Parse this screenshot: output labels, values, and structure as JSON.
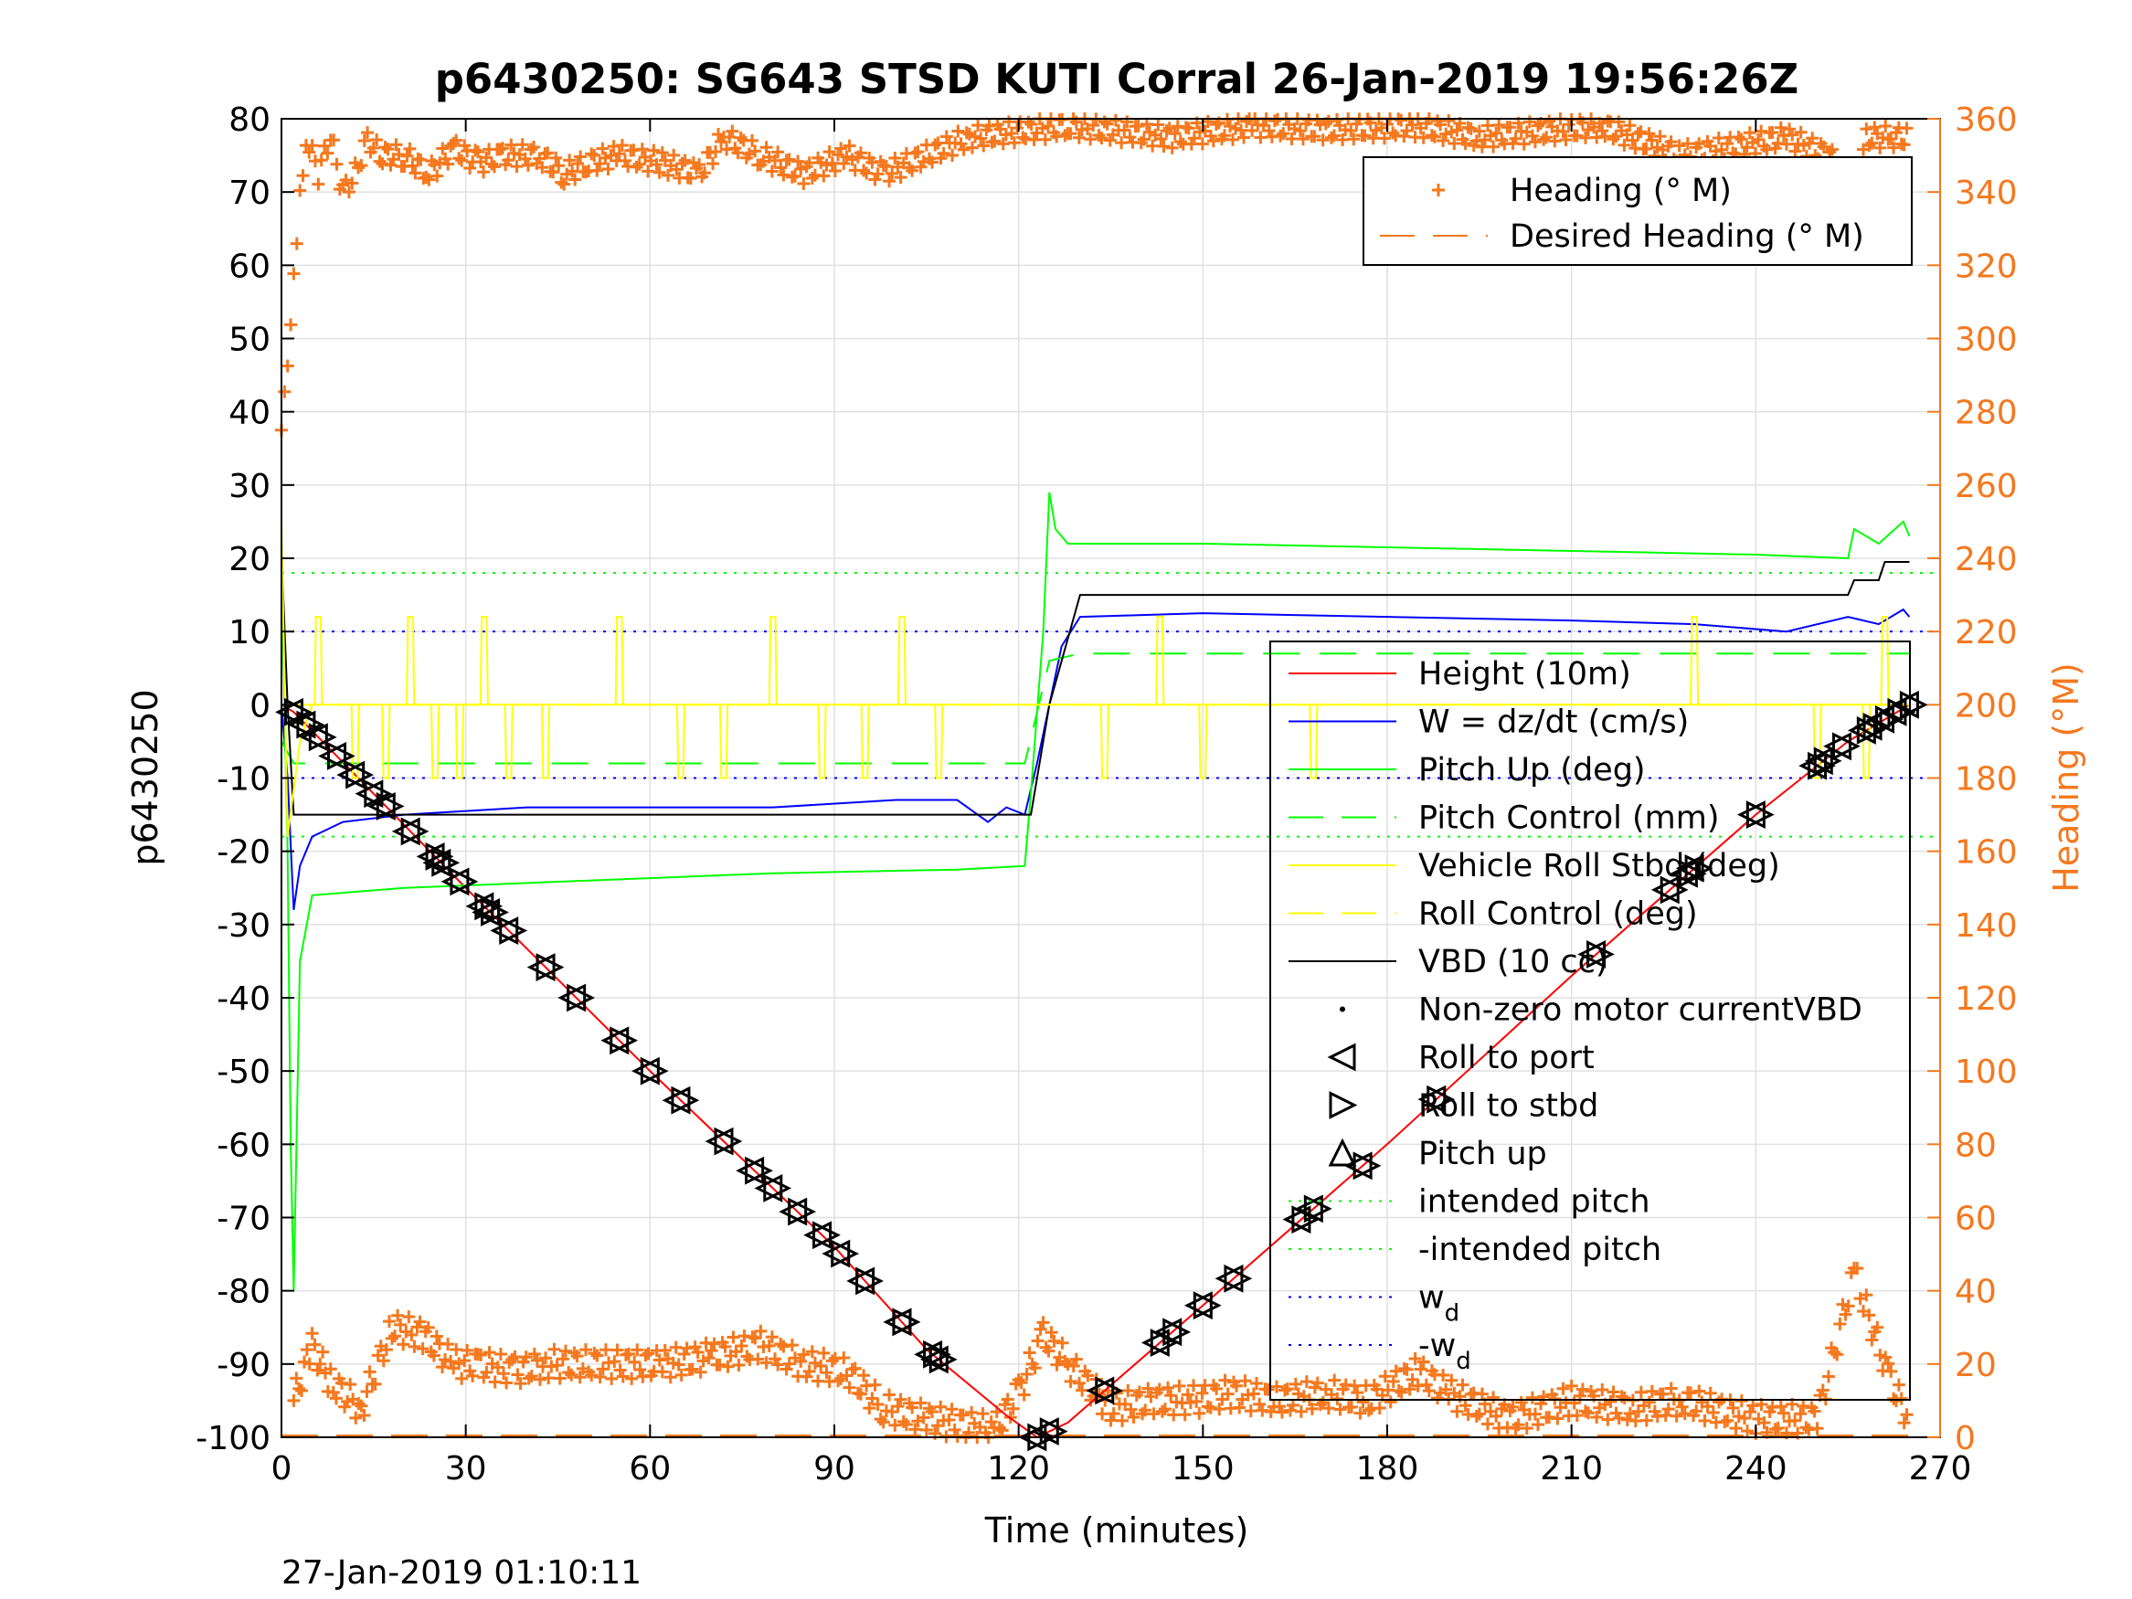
{
  "chart_data": {
    "type": "line",
    "title": "p6430250: SG643 STSD KUTI Corral 26-Jan-2019 19:56:26Z",
    "xlabel": "Time (minutes)",
    "ylabel": "p6430250",
    "ylabel_right": "Heading (°M)",
    "xlim": [
      0,
      270
    ],
    "ylim": [
      -100,
      80
    ],
    "ylim_right": [
      0,
      360
    ],
    "x_ticks": [
      "0",
      "30",
      "60",
      "90",
      "120",
      "150",
      "180",
      "210",
      "240",
      "270"
    ],
    "y_ticks": [
      "-100",
      "-90",
      "-80",
      "-70",
      "-60",
      "-50",
      "-40",
      "-30",
      "-20",
      "-10",
      "0",
      "10",
      "20",
      "30",
      "40",
      "50",
      "60",
      "70",
      "80"
    ],
    "y_ticks_right": [
      "0",
      "20",
      "40",
      "60",
      "80",
      "100",
      "120",
      "140",
      "160",
      "180",
      "200",
      "220",
      "240",
      "260",
      "280",
      "300",
      "320",
      "340",
      "360"
    ],
    "grid": true,
    "footer": "27-Jan-2019 01:10:11",
    "colors": {
      "height": "#ff0000",
      "w": "#0000ff",
      "pitch": "#00ff00",
      "roll": "#ffff00",
      "vbd": "#000000",
      "heading": "#f5781e"
    },
    "legend_heading": [
      {
        "label": "Heading (° M)",
        "marker": "+",
        "color": "#f5781e"
      },
      {
        "label": "Desired Heading (° M)",
        "line": "dashed",
        "color": "#f5781e"
      }
    ],
    "legend_main": [
      {
        "label": "Height (10m)",
        "line": "solid",
        "color": "#ff0000"
      },
      {
        "label": "W = dz/dt (cm/s)",
        "line": "solid",
        "color": "#0000ff"
      },
      {
        "label": "Pitch Up (deg)",
        "line": "solid",
        "color": "#00ff00"
      },
      {
        "label": "Pitch Control (mm)",
        "line": "dashed",
        "color": "#00ff00"
      },
      {
        "label": "Vehicle Roll Stbd (deg)",
        "line": "solid",
        "color": "#ffff00"
      },
      {
        "label": "Roll Control (deg)",
        "line": "dashed",
        "color": "#ffff00"
      },
      {
        "label": "VBD (10 cc)",
        "line": "solid",
        "color": "#000000"
      },
      {
        "label": "Non-zero motor currentVBD",
        "marker": "dot",
        "color": "#000000"
      },
      {
        "label": "Roll to port",
        "marker": "tri-left",
        "color": "#000000"
      },
      {
        "label": "Roll to stbd",
        "marker": "tri-right",
        "color": "#000000"
      },
      {
        "label": "Pitch up",
        "marker": "tri-up",
        "color": "#000000"
      },
      {
        "label": "intended pitch",
        "line": "dotted",
        "color": "#00ff00"
      },
      {
        "label": "-intended pitch",
        "line": "dotted",
        "color": "#00ff00"
      },
      {
        "label": "w",
        "sub": "d",
        "line": "dotted",
        "color": "#0000ff"
      },
      {
        "label": "-w",
        "sub": "d",
        "line": "dotted",
        "color": "#0000ff"
      }
    ],
    "series": [
      {
        "name": "Height (10m)",
        "x": [
          0,
          2,
          30,
          60,
          90,
          105,
          118,
          123,
          128,
          150,
          180,
          210,
          240,
          255,
          265
        ],
        "y": [
          0,
          -1,
          -25,
          -50,
          -74,
          -88,
          -97,
          -100,
          -98,
          -82,
          -60,
          -37,
          -15,
          -5,
          0
        ]
      },
      {
        "name": "W = dz/dt (cm/s)",
        "x": [
          0,
          1,
          2,
          3,
          5,
          10,
          20,
          40,
          60,
          80,
          100,
          110,
          115,
          118,
          121,
          123,
          125,
          127,
          130,
          150,
          180,
          210,
          230,
          245,
          255,
          260,
          264,
          265
        ],
        "y": [
          0,
          -10,
          -28,
          -22,
          -18,
          -16,
          -15,
          -14,
          -14,
          -14,
          -13,
          -13,
          -16,
          -14,
          -15,
          -8,
          0,
          8,
          12,
          12.5,
          12,
          11.5,
          11,
          10,
          12,
          11,
          13,
          12
        ]
      },
      {
        "name": "Pitch Up (deg)",
        "x": [
          0,
          1,
          1.5,
          2,
          3,
          5,
          20,
          50,
          80,
          110,
          121,
          122,
          124,
          125,
          126,
          128,
          150,
          180,
          210,
          240,
          255,
          256,
          260,
          264,
          265
        ],
        "y": [
          20,
          -20,
          -60,
          -80,
          -35,
          -26,
          -25,
          -24,
          -23,
          -22.5,
          -22,
          -12,
          10,
          29,
          24,
          22,
          22,
          21.5,
          21,
          20.5,
          20,
          24,
          22,
          25,
          23
        ]
      },
      {
        "name": "Pitch Control (mm)",
        "x": [
          0,
          2,
          5,
          120,
          121,
          125,
          130,
          265
        ],
        "y": [
          -5,
          -8,
          -8,
          -8,
          -8,
          6,
          7,
          7
        ]
      },
      {
        "name": "VBD (10 cc)",
        "x": [
          0,
          1,
          2,
          4,
          122,
          125,
          130,
          255,
          256,
          260,
          261,
          265
        ],
        "y": [
          21,
          0,
          -15,
          -15,
          -15,
          0,
          15,
          15,
          17,
          17,
          19.5,
          19.5
        ]
      },
      {
        "name": "Vehicle Roll Stbd (deg)",
        "x": [
          0,
          1,
          3,
          5,
          265
        ],
        "y": [
          25,
          -18,
          -5,
          0,
          0
        ]
      },
      {
        "name": "Roll Control (deg)",
        "x": [
          0,
          265
        ],
        "y": [
          0,
          0
        ]
      }
    ],
    "roll_pulses": [
      6,
      12,
      17,
      21,
      25,
      29,
      33,
      37,
      43,
      55,
      65,
      72,
      80,
      88,
      95,
      101,
      107,
      134,
      143,
      150,
      168,
      230,
      250,
      258,
      261
    ],
    "intended_pitch": [
      18,
      -18
    ],
    "wd": [
      10,
      -10
    ],
    "heading": {
      "desired": 0,
      "top_clusters": [
        [
          0,
          275
        ],
        [
          1,
          290
        ],
        [
          2,
          315
        ],
        [
          3,
          340
        ],
        [
          4,
          355
        ],
        [
          6,
          345
        ],
        [
          8,
          355
        ],
        [
          10,
          340
        ],
        [
          12,
          345
        ],
        [
          14,
          355
        ],
        [
          16,
          350
        ],
        [
          20,
          350
        ],
        [
          24,
          345
        ],
        [
          28,
          352
        ],
        [
          32,
          348
        ],
        [
          36,
          350
        ],
        [
          42,
          350
        ],
        [
          46,
          345
        ],
        [
          50,
          348
        ],
        [
          55,
          350
        ],
        [
          62,
          348
        ],
        [
          68,
          345
        ],
        [
          72,
          355
        ],
        [
          78,
          350
        ],
        [
          85,
          345
        ],
        [
          92,
          350
        ],
        [
          98,
          345
        ],
        [
          105,
          350
        ],
        [
          112,
          355
        ],
        [
          128,
          358
        ],
        [
          145,
          355
        ],
        [
          158,
          358
        ],
        [
          170,
          357
        ],
        [
          185,
          358
        ],
        [
          195,
          355
        ],
        [
          215,
          358
        ],
        [
          228,
          350
        ],
        [
          245,
          355
        ],
        [
          252,
          350
        ],
        [
          256,
          340
        ],
        [
          258,
          355
        ],
        [
          262,
          355
        ],
        [
          265,
          355
        ]
      ],
      "bottom_clusters": [
        [
          2,
          10
        ],
        [
          5,
          25
        ],
        [
          8,
          15
        ],
        [
          13,
          8
        ],
        [
          18,
          30
        ],
        [
          23,
          28
        ],
        [
          28,
          20
        ],
        [
          32,
          20
        ],
        [
          38,
          18
        ],
        [
          43,
          20
        ],
        [
          50,
          20
        ],
        [
          57,
          20
        ],
        [
          62,
          20
        ],
        [
          70,
          22
        ],
        [
          78,
          25
        ],
        [
          85,
          20
        ],
        [
          92,
          18
        ],
        [
          98,
          8
        ],
        [
          105,
          5
        ],
        [
          116,
          2
        ],
        [
          120,
          12
        ],
        [
          124,
          28
        ],
        [
          128,
          20
        ],
        [
          135,
          8
        ],
        [
          142,
          10
        ],
        [
          148,
          10
        ],
        [
          155,
          12
        ],
        [
          162,
          10
        ],
        [
          170,
          12
        ],
        [
          177,
          10
        ],
        [
          185,
          18
        ],
        [
          190,
          12
        ],
        [
          200,
          5
        ],
        [
          210,
          10
        ],
        [
          220,
          8
        ],
        [
          228,
          10
        ],
        [
          240,
          5
        ],
        [
          250,
          5
        ],
        [
          256,
          45
        ],
        [
          258,
          35
        ],
        [
          262,
          15
        ],
        [
          265,
          5
        ]
      ]
    }
  }
}
